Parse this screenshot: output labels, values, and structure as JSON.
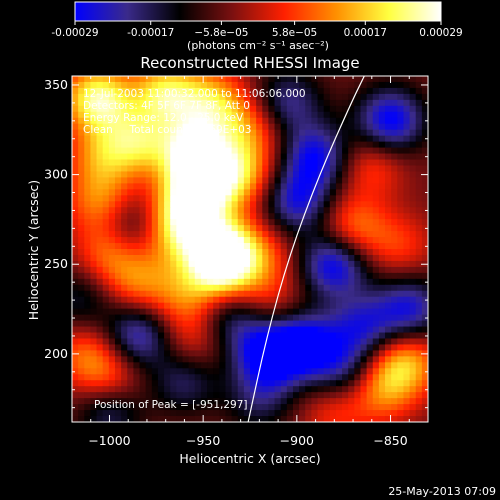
{
  "colorbar": {
    "tick_labels": [
      "-0.00029",
      "-0.00017",
      "−5.8e−05",
      "5.8e−05",
      "0.00017",
      "0.00029"
    ],
    "tick_values": [
      -0.00029,
      -0.00017,
      -5.8e-05,
      5.8e-05,
      0.00017,
      0.00029
    ],
    "range": [
      -0.00029,
      0.00029
    ],
    "units_label": "(photons cm⁻² s⁻¹ asec⁻²)",
    "stops": [
      "#0000ff",
      "#3a2a8a",
      "#000000",
      "#7a1010",
      "#ff2000",
      "#ff9000",
      "#ffff40",
      "#ffffff"
    ]
  },
  "chart_data": {
    "type": "heatmap",
    "title": "Reconstructed RHESSI Image",
    "xlabel": "Heliocentric X (arcsec)",
    "ylabel": "Heliocentric Y (arcsec)",
    "xlim": [
      -1020,
      -830
    ],
    "ylim": [
      162,
      355
    ],
    "x_ticks": [
      -1000,
      -950,
      -900,
      -850
    ],
    "x_tick_labels": [
      "−1000",
      "−950",
      "−900",
      "−850"
    ],
    "y_ticks": [
      200,
      250,
      300,
      350
    ],
    "y_tick_labels": [
      "200",
      "250",
      "300",
      "350"
    ],
    "annotations": [
      "12-Jul-2003 11:00:32.000 to 11:06:06.000",
      "Detectors: 4F 5F 6F 7F 8F, Att 0",
      "Energy Range: 12.0 - 25.0 keV",
      "Clean     Total counts: 1.69E+03"
    ],
    "peak_label": "Position of Peak = [-951,297]",
    "peak_position": [
      -951,
      297
    ],
    "limb_curve": [
      [
        -926,
        162
      ],
      [
        -916,
        210
      ],
      [
        -904,
        255
      ],
      [
        -888,
        300
      ],
      [
        -871,
        340
      ],
      [
        -864,
        355
      ]
    ],
    "intensity_blobs": [
      {
        "x": -951,
        "y": 297,
        "v": 1.0
      },
      {
        "x": -955,
        "y": 315,
        "v": 0.9
      },
      {
        "x": -958,
        "y": 280,
        "v": 0.85
      },
      {
        "x": -940,
        "y": 260,
        "v": 0.8
      },
      {
        "x": -940,
        "y": 248,
        "v": 0.95
      },
      {
        "x": -985,
        "y": 318,
        "v": 0.7
      },
      {
        "x": -1005,
        "y": 310,
        "v": 0.5
      },
      {
        "x": -1005,
        "y": 340,
        "v": 0.6
      },
      {
        "x": -970,
        "y": 345,
        "v": 0.85
      },
      {
        "x": -945,
        "y": 340,
        "v": 0.7
      },
      {
        "x": -930,
        "y": 300,
        "v": 0.65
      },
      {
        "x": -925,
        "y": 325,
        "v": 0.5
      },
      {
        "x": -1005,
        "y": 285,
        "v": 0.55
      },
      {
        "x": -965,
        "y": 265,
        "v": 0.5
      },
      {
        "x": -1000,
        "y": 258,
        "v": 0.55
      },
      {
        "x": -985,
        "y": 240,
        "v": 0.5
      },
      {
        "x": -960,
        "y": 232,
        "v": 0.45
      },
      {
        "x": -1012,
        "y": 200,
        "v": 0.45
      },
      {
        "x": -1000,
        "y": 185,
        "v": 0.5
      },
      {
        "x": -955,
        "y": 208,
        "v": 0.35
      },
      {
        "x": -918,
        "y": 255,
        "v": 0.35
      },
      {
        "x": -915,
        "y": 230,
        "v": 0.3
      },
      {
        "x": -870,
        "y": 270,
        "v": 0.55
      },
      {
        "x": -860,
        "y": 305,
        "v": 0.4
      },
      {
        "x": -845,
        "y": 260,
        "v": 0.35
      },
      {
        "x": -842,
        "y": 195,
        "v": 0.7
      },
      {
        "x": -855,
        "y": 180,
        "v": 0.55
      },
      {
        "x": -880,
        "y": 168,
        "v": 0.35
      },
      {
        "x": -1008,
        "y": 345,
        "v": 0.45
      },
      {
        "x": -915,
        "y": 200,
        "v": -0.9
      },
      {
        "x": -895,
        "y": 205,
        "v": -0.8
      },
      {
        "x": -880,
        "y": 250,
        "v": -0.85
      },
      {
        "x": -890,
        "y": 310,
        "v": -0.75
      },
      {
        "x": -850,
        "y": 330,
        "v": -0.85
      },
      {
        "x": -840,
        "y": 225,
        "v": -0.7
      },
      {
        "x": -865,
        "y": 215,
        "v": -0.6
      },
      {
        "x": -985,
        "y": 210,
        "v": -0.7
      },
      {
        "x": -1000,
        "y": 170,
        "v": -0.55
      },
      {
        "x": -960,
        "y": 185,
        "v": -0.45
      },
      {
        "x": -935,
        "y": 220,
        "v": -0.5
      },
      {
        "x": -990,
        "y": 270,
        "v": -0.45
      },
      {
        "x": -900,
        "y": 285,
        "v": -0.7
      },
      {
        "x": -905,
        "y": 340,
        "v": -0.55
      },
      {
        "x": -875,
        "y": 190,
        "v": -0.5
      },
      {
        "x": -920,
        "y": 175,
        "v": -0.4
      },
      {
        "x": -1015,
        "y": 230,
        "v": -0.35
      }
    ]
  },
  "footer": {
    "timestamp": "25-May-2013 07:09"
  }
}
